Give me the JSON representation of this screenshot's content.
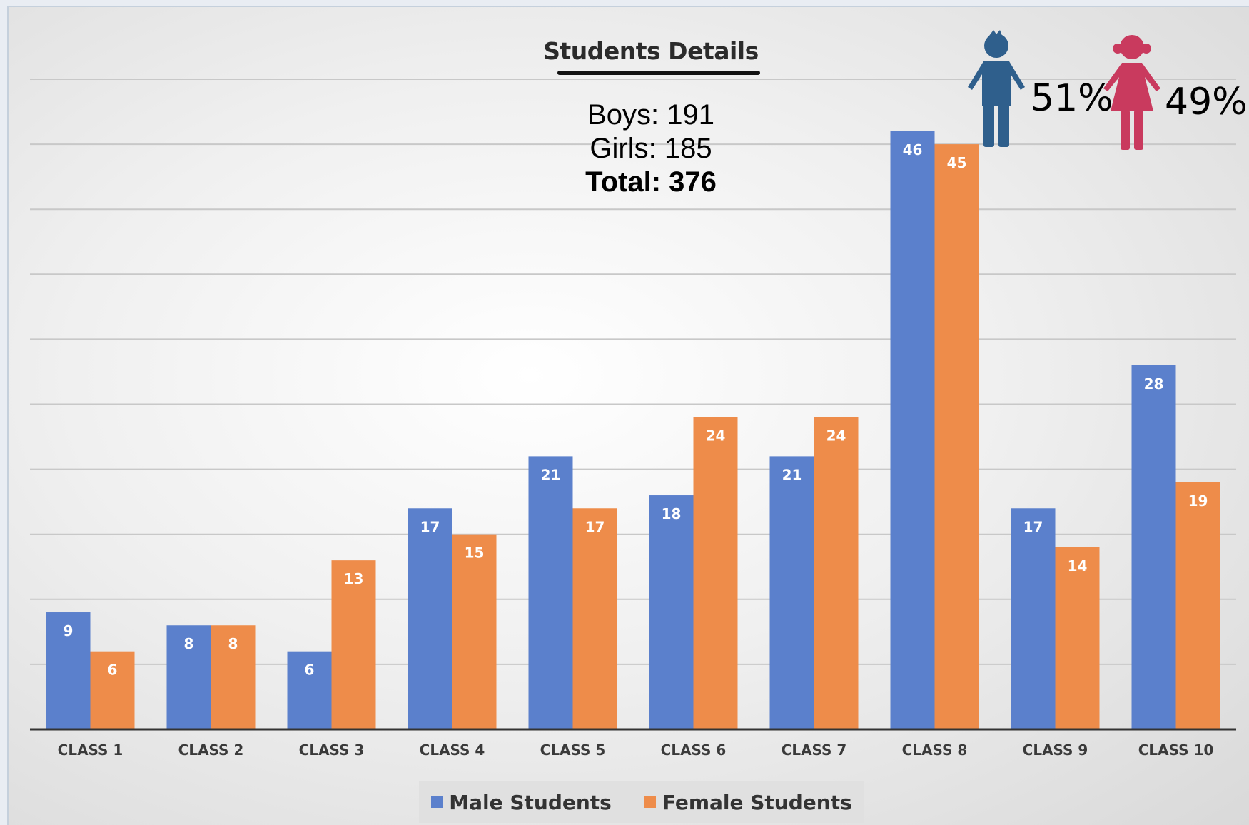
{
  "chart_data": {
    "type": "bar",
    "title": "Students Details",
    "summary": {
      "boys_line": "Boys: 191",
      "girls_line": "Girls: 185",
      "total_line": "Total: 376"
    },
    "percentages": {
      "male": "51%",
      "female": "49%"
    },
    "categories": [
      "CLASS 1",
      "CLASS 2",
      "CLASS 3",
      "CLASS 4",
      "CLASS 5",
      "CLASS 6",
      "CLASS 7",
      "CLASS 8",
      "CLASS 9",
      "CLASS 10"
    ],
    "series": [
      {
        "name": "Male Students",
        "color": "#5b80cc",
        "values": [
          9,
          8,
          6,
          17,
          21,
          18,
          21,
          46,
          17,
          28
        ]
      },
      {
        "name": "Female Students",
        "color": "#ee8c4a",
        "values": [
          6,
          8,
          13,
          15,
          17,
          24,
          24,
          45,
          14,
          19
        ]
      }
    ],
    "ylim": [
      0,
      50
    ],
    "grid": true,
    "legend_position": "bottom"
  },
  "colors": {
    "male_icon": "#2f5f8c",
    "female_icon": "#c93a5e",
    "gridline": "#c8c8c8",
    "axis": "#333333"
  },
  "icons": {
    "male": "boy-icon",
    "female": "girl-icon"
  }
}
